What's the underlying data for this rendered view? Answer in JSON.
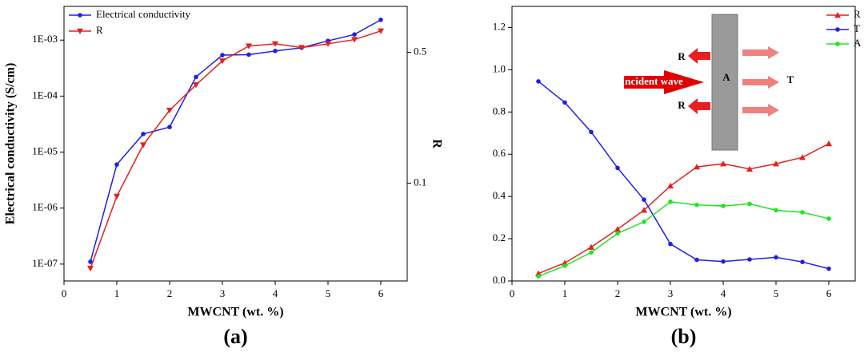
{
  "chart_data": [
    {
      "type": "line",
      "caption": "(a)",
      "xlabel": "MWCNT (wt. %)",
      "ylabel": "Electrical conductivity (S/cm)",
      "y2label": "R",
      "x": [
        0.5,
        1,
        1.5,
        2,
        2.5,
        3,
        3.5,
        4,
        4.5,
        5,
        5.5,
        6
      ],
      "series": [
        {
          "name": "Electrical conductivity",
          "color": "#1f1fe6",
          "marker": "circle",
          "values": [
            1.1e-07,
            6e-06,
            2.1e-05,
            2.8e-05,
            0.00022,
            0.00054,
            0.00055,
            0.00064,
            0.00073,
            0.00097,
            0.00126,
            0.0023
          ]
        },
        {
          "name": "R",
          "color": "#e61f1f",
          "marker": "triangle-down",
          "axis": "y2",
          "values": [
            0.035,
            0.085,
            0.16,
            0.245,
            0.335,
            0.45,
            0.54,
            0.555,
            0.53,
            0.555,
            0.585,
            0.65
          ]
        }
      ],
      "xlim": [
        0,
        6.5
      ],
      "xticks": [
        0,
        1,
        2,
        3,
        4,
        5,
        6
      ],
      "ylim": [
        5e-08,
        0.004
      ],
      "ylog": true,
      "yticks": [
        {
          "value": 1e-07,
          "label": "1E-07"
        },
        {
          "value": 1e-06,
          "label": "1E-06"
        },
        {
          "value": 1e-05,
          "label": "1E-05"
        },
        {
          "value": 0.0001,
          "label": "1E-04"
        },
        {
          "value": 0.001,
          "label": "1E-03"
        }
      ],
      "y2lim": [
        0.03,
        0.88
      ],
      "y2log": true,
      "y2ticks": [
        0.1,
        0.5
      ],
      "legend": "upper left",
      "grid": false
    },
    {
      "type": "line",
      "caption": "(b)",
      "xlabel": "MWCNT (wt. %)",
      "x": [
        0.5,
        1,
        1.5,
        2,
        2.5,
        3,
        3.5,
        4,
        4.5,
        5,
        5.5,
        6
      ],
      "series": [
        {
          "name": "R",
          "color": "#e61f1f",
          "marker": "triangle-up",
          "values": [
            0.035,
            0.085,
            0.16,
            0.245,
            0.335,
            0.45,
            0.54,
            0.555,
            0.53,
            0.555,
            0.585,
            0.65
          ]
        },
        {
          "name": "T",
          "color": "#1f1fe6",
          "marker": "circle",
          "values": [
            0.945,
            0.845,
            0.705,
            0.535,
            0.385,
            0.175,
            0.1,
            0.092,
            0.102,
            0.112,
            0.09,
            0.058
          ]
        },
        {
          "name": "A",
          "color": "#1fe61f",
          "marker": "circle",
          "values": [
            0.022,
            0.072,
            0.135,
            0.225,
            0.28,
            0.375,
            0.36,
            0.355,
            0.365,
            0.335,
            0.325,
            0.295
          ]
        }
      ],
      "xlim": [
        0,
        6.5
      ],
      "xticks": [
        0,
        1,
        2,
        3,
        4,
        5,
        6
      ],
      "ylim": [
        0,
        1.3
      ],
      "yticks": [
        {
          "value": 0,
          "label": "0.0"
        },
        0.2,
        0.4,
        0.6,
        0.8,
        {
          "value": 1,
          "label": "1.0"
        },
        1.2
      ],
      "annotations": [
        "R",
        "Incident wave",
        "A",
        "R",
        "T"
      ],
      "legend": "upper right",
      "grid": false
    }
  ]
}
